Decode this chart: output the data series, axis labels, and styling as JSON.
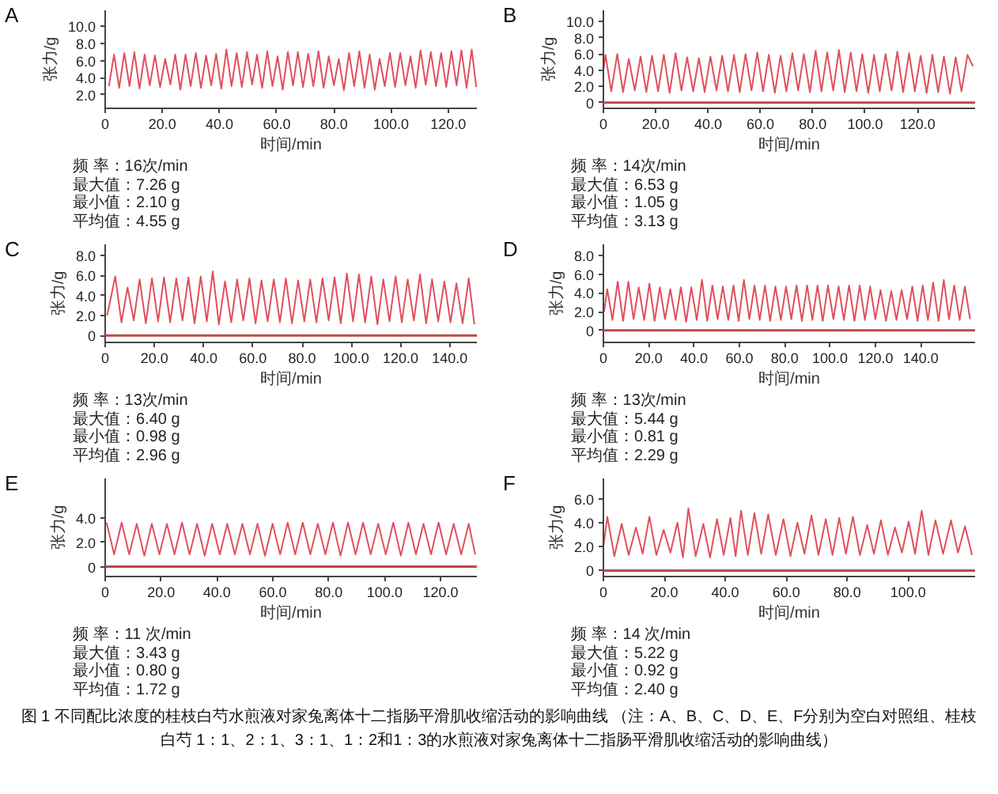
{
  "chart_data": [
    {
      "type": "line",
      "title": "A",
      "xlabel": "时间/min",
      "ylabel": "张力/g",
      "x": [
        1.3,
        3.1,
        4.9,
        6.7,
        8.5,
        10.2,
        12.0,
        13.8,
        15.6,
        17.4,
        19.2,
        21.0,
        22.8,
        24.5,
        26.3,
        28.1,
        29.9,
        31.7,
        33.5,
        35.3,
        37.1,
        38.8,
        40.6,
        42.4,
        44.2,
        46.0,
        47.8,
        49.6,
        51.4,
        53.1,
        54.9,
        56.7,
        58.5,
        60.3,
        62.1,
        63.9,
        65.7,
        67.4,
        69.2,
        71.0,
        72.8,
        74.6,
        76.4,
        78.2,
        80.0,
        81.7,
        83.5,
        85.3,
        87.1,
        88.9,
        90.7,
        92.5,
        94.3,
        96.0,
        97.8,
        99.6,
        101.4,
        103.2,
        105.0,
        106.8,
        108.6,
        110.3,
        112.1,
        113.9,
        115.7,
        117.5,
        119.3,
        121.1,
        122.9,
        124.6,
        126.4,
        128.2,
        129.8
      ],
      "series": [
        {
          "color": "#e0505c",
          "values": [
            3.0,
            6.7,
            2.8,
            6.9,
            3.0,
            7.0,
            2.7,
            6.7,
            3.1,
            6.6,
            2.9,
            6.2,
            3.2,
            6.7,
            2.6,
            6.7,
            3.0,
            6.9,
            2.8,
            6.6,
            3.1,
            6.8,
            2.7,
            7.3,
            3.0,
            6.9,
            2.9,
            7.0,
            3.2,
            6.7,
            2.8,
            7.1,
            3.0,
            6.5,
            2.6,
            7.0,
            3.1,
            7.0,
            2.9,
            6.8,
            3.0,
            7.1,
            2.8,
            6.5,
            3.1,
            6.2,
            2.5,
            6.9,
            3.0,
            7.1,
            2.8,
            6.7,
            2.6,
            6.2,
            3.0,
            6.9,
            2.9,
            6.9,
            3.1,
            6.5,
            2.8,
            7.2,
            3.2,
            7.0,
            3.0,
            6.9,
            2.9,
            7.1,
            3.1,
            7.2,
            2.8,
            7.3,
            2.9
          ]
        }
      ],
      "xlim": [
        0,
        130
      ],
      "ylim": [
        0.4,
        11.9
      ],
      "xticks": [
        0,
        {
          "value": 20,
          "label": "20.0"
        },
        {
          "value": 40,
          "label": "40.0"
        },
        {
          "value": 60,
          "label": "60.0"
        },
        {
          "value": 80,
          "label": "80.0"
        },
        {
          "value": 100,
          "label": "100.0"
        },
        {
          "value": 120,
          "label": "120.0"
        }
      ],
      "yticks": [
        {
          "value": 2,
          "label": "2.0"
        },
        {
          "value": 4,
          "label": "4.0"
        },
        {
          "value": 6,
          "label": "6.0"
        },
        {
          "value": 8,
          "label": "8.0"
        },
        {
          "value": 10,
          "label": "10.0"
        }
      ],
      "annotations": [
        "频 率：16次/min",
        "最大值：7.26 g",
        "最小值：2.10 g",
        "平均值：4.55 g"
      ]
    },
    {
      "type": "line",
      "title": "B",
      "xlabel": "时间/min",
      "ylabel": "张力/g",
      "x": [
        0.0,
        0.8,
        3.0,
        5.3,
        7.5,
        9.7,
        12.0,
        14.2,
        16.4,
        18.6,
        20.9,
        23.1,
        25.3,
        27.6,
        29.8,
        32.0,
        34.3,
        36.5,
        38.7,
        40.9,
        43.2,
        45.4,
        47.6,
        49.9,
        52.1,
        54.3,
        56.6,
        58.8,
        61.0,
        63.2,
        65.5,
        67.7,
        69.9,
        72.2,
        74.4,
        76.6,
        78.9,
        81.1,
        83.3,
        85.5,
        87.8,
        90.0,
        92.2,
        94.5,
        96.7,
        98.9,
        101.2,
        103.4,
        105.6,
        107.8,
        110.1,
        112.3,
        114.5,
        116.8,
        119.0,
        121.2,
        123.5,
        125.7,
        127.9,
        130.1,
        132.4,
        134.6,
        136.8,
        139.1,
        141.2
      ],
      "series": [
        {
          "color": "#e0505c",
          "values": [
            4.0,
            5.9,
            1.4,
            6.0,
            1.3,
            5.4,
            1.5,
            5.7,
            1.3,
            5.8,
            1.4,
            5.9,
            1.2,
            6.1,
            1.5,
            5.6,
            1.4,
            5.5,
            1.3,
            5.7,
            1.5,
            5.8,
            1.4,
            5.9,
            1.3,
            6.0,
            1.5,
            6.2,
            1.4,
            5.9,
            1.2,
            5.8,
            1.4,
            6.1,
            1.5,
            6.0,
            1.3,
            6.4,
            1.4,
            6.2,
            1.5,
            6.5,
            1.3,
            6.2,
            1.4,
            6.0,
            1.2,
            5.9,
            1.4,
            6.0,
            1.5,
            6.3,
            1.3,
            6.1,
            1.4,
            5.8,
            1.2,
            5.9,
            1.3,
            5.7,
            1.1,
            5.6,
            1.4,
            5.9,
            4.5
          ]
        }
      ],
      "xlim": [
        0,
        142
      ],
      "ylim": [
        -0.7,
        11.4
      ],
      "xticks": [
        0,
        {
          "value": 20,
          "label": "20.0"
        },
        {
          "value": 40,
          "label": "40.0"
        },
        {
          "value": 60,
          "label": "60.0"
        },
        {
          "value": 80,
          "label": "80.0"
        },
        {
          "value": 100,
          "label": "100.0"
        },
        {
          "value": 120,
          "label": "120.0"
        }
      ],
      "yticks": [
        0,
        {
          "value": 2,
          "label": "2.0"
        },
        {
          "value": 4,
          "label": "4.0"
        },
        {
          "value": 6,
          "label": "6.0"
        },
        {
          "value": 8,
          "label": "8.0"
        },
        {
          "value": 10,
          "label": "10.0"
        }
      ],
      "ref_lines": [
        {
          "axis": "y",
          "value": 0,
          "color": "#b84a4a"
        }
      ],
      "annotations": [
        "频 率：14次/min",
        "最大值：6.53 g",
        "最小值：1.05 g",
        "平均值：3.13 g"
      ]
    },
    {
      "type": "line",
      "title": "C",
      "xlabel": "时间/min",
      "ylabel": "张力/g",
      "x": [
        0.8,
        4.1,
        6.6,
        9.1,
        11.6,
        14.0,
        16.5,
        19.0,
        21.5,
        23.9,
        26.4,
        28.9,
        31.4,
        33.8,
        36.3,
        38.8,
        41.3,
        43.7,
        46.2,
        48.7,
        51.2,
        53.6,
        56.1,
        58.6,
        61.1,
        63.5,
        66.0,
        68.5,
        71.0,
        73.4,
        75.9,
        78.4,
        80.9,
        83.3,
        85.8,
        88.3,
        90.8,
        93.2,
        95.7,
        98.2,
        100.7,
        103.1,
        105.6,
        108.1,
        110.6,
        113.0,
        115.5,
        118.0,
        120.5,
        122.9,
        125.4,
        127.9,
        130.4,
        132.8,
        135.3,
        137.8,
        140.3,
        142.7,
        145.2,
        147.7,
        150.0
      ],
      "series": [
        {
          "color": "#e0505c",
          "values": [
            2.0,
            5.9,
            1.3,
            4.8,
            1.5,
            5.6,
            1.2,
            5.7,
            1.4,
            5.8,
            1.3,
            5.7,
            1.5,
            5.8,
            1.2,
            5.9,
            1.4,
            6.4,
            1.1,
            5.4,
            1.3,
            5.6,
            1.5,
            5.7,
            1.2,
            5.5,
            1.4,
            5.6,
            1.3,
            5.7,
            1.2,
            5.5,
            1.4,
            5.6,
            1.3,
            5.7,
            1.5,
            5.8,
            1.2,
            6.2,
            1.4,
            6.1,
            1.3,
            5.9,
            1.1,
            5.6,
            1.4,
            5.9,
            1.3,
            5.6,
            1.5,
            6.1,
            1.2,
            5.6,
            1.4,
            5.4,
            1.3,
            5.2,
            1.2,
            5.7,
            1.1
          ]
        }
      ],
      "xlim": [
        0,
        151
      ],
      "ylim": [
        -0.7,
        9.1
      ],
      "xticks": [
        0,
        {
          "value": 20,
          "label": "20.0"
        },
        {
          "value": 40,
          "label": "40.0"
        },
        {
          "value": 60,
          "label": "60.0"
        },
        {
          "value": 80,
          "label": "80.0"
        },
        {
          "value": 100,
          "label": "100.0"
        },
        {
          "value": 120,
          "label": "120.0"
        },
        {
          "value": 140,
          "label": "140.0"
        }
      ],
      "yticks": [
        0,
        {
          "value": 2,
          "label": "2.0"
        },
        {
          "value": 4,
          "label": "4.0"
        },
        {
          "value": 6,
          "label": "6.0"
        },
        {
          "value": 8,
          "label": "8.0"
        }
      ],
      "ref_lines": [
        {
          "axis": "y",
          "value": 0,
          "color": "#b84a4a"
        }
      ],
      "annotations": [
        "频 率：13次/min",
        "最大值：6.40 g",
        "最小值：0.98 g",
        "平均值：2.96 g"
      ]
    },
    {
      "type": "line",
      "title": "D",
      "xlabel": "时间/min",
      "ylabel": "张力/g",
      "x": [
        0.3,
        1.7,
        4.0,
        6.3,
        8.7,
        11.0,
        13.3,
        15.6,
        18.0,
        20.3,
        22.6,
        24.9,
        27.2,
        29.5,
        31.9,
        34.2,
        36.5,
        38.8,
        41.2,
        43.5,
        45.8,
        48.1,
        50.4,
        52.7,
        55.1,
        57.4,
        59.7,
        62.0,
        64.4,
        66.7,
        69.0,
        71.3,
        73.6,
        75.9,
        78.3,
        80.6,
        82.9,
        85.2,
        87.6,
        89.9,
        92.2,
        94.5,
        96.8,
        99.1,
        101.5,
        103.8,
        106.1,
        108.4,
        110.8,
        113.1,
        115.4,
        117.7,
        120.0,
        122.3,
        124.7,
        127.0,
        129.3,
        131.6,
        134.0,
        136.3,
        138.6,
        140.9,
        143.2,
        145.5,
        147.9,
        150.2,
        152.5,
        154.8,
        157.2,
        159.5,
        161.8
      ],
      "series": [
        {
          "color": "#e0505c",
          "values": [
            2.0,
            4.4,
            1.1,
            5.2,
            1.0,
            5.2,
            1.2,
            4.6,
            1.1,
            5.0,
            1.0,
            4.6,
            1.2,
            4.4,
            1.1,
            4.6,
            0.9,
            4.6,
            1.1,
            5.4,
            1.0,
            4.8,
            1.2,
            4.7,
            1.1,
            4.8,
            1.0,
            5.4,
            1.2,
            4.8,
            1.1,
            4.8,
            1.0,
            4.7,
            1.1,
            4.7,
            1.2,
            4.8,
            1.0,
            4.8,
            1.1,
            4.8,
            1.0,
            4.8,
            1.2,
            4.7,
            1.1,
            4.8,
            1.0,
            4.8,
            1.1,
            4.7,
            1.2,
            4.3,
            1.0,
            4.2,
            1.1,
            4.3,
            1.2,
            4.7,
            1.0,
            4.8,
            1.1,
            5.1,
            1.0,
            5.4,
            1.2,
            4.8,
            1.1,
            4.7,
            1.2
          ]
        }
      ],
      "xlim": [
        0,
        164
      ],
      "ylim": [
        -1.3,
        9.2
      ],
      "xticks": [
        0,
        {
          "value": 20,
          "label": "20.0"
        },
        {
          "value": 40,
          "label": "40.0"
        },
        {
          "value": 60,
          "label": "60.0"
        },
        {
          "value": 80,
          "label": "80.0"
        },
        {
          "value": 100,
          "label": "100.0"
        },
        {
          "value": 120,
          "label": "120.0"
        },
        {
          "value": 140,
          "label": "140.0"
        }
      ],
      "yticks": [
        0,
        {
          "value": 2,
          "label": "2.0"
        },
        {
          "value": 4,
          "label": "4.0"
        },
        {
          "value": 6,
          "label": "6.0"
        },
        {
          "value": 8,
          "label": "8.0"
        }
      ],
      "ref_lines": [
        {
          "axis": "y",
          "value": 0,
          "color": "#b84a4a"
        }
      ],
      "annotations": [
        "频 率：13次/min",
        "最大值：5.44 g",
        "最小值：0.81 g",
        "平均值：2.29 g"
      ]
    },
    {
      "type": "line",
      "title": "E",
      "xlabel": "时间/min",
      "ylabel": "张力/g",
      "x": [
        0.5,
        3.2,
        5.9,
        8.6,
        11.3,
        14.0,
        16.7,
        19.4,
        22.1,
        24.8,
        27.5,
        30.2,
        32.9,
        35.6,
        38.3,
        41.0,
        43.7,
        46.4,
        49.1,
        51.8,
        54.5,
        57.2,
        59.9,
        62.6,
        65.3,
        68.0,
        70.7,
        73.4,
        76.1,
        78.8,
        81.5,
        84.2,
        86.9,
        89.6,
        92.3,
        95.0,
        97.7,
        100.4,
        103.1,
        105.8,
        108.5,
        111.2,
        113.9,
        116.6,
        119.3,
        122.0,
        124.7,
        127.4,
        130.1,
        132.4
      ],
      "series": [
        {
          "color": "#e0505c",
          "values": [
            3.6,
            1.0,
            3.6,
            1.0,
            3.5,
            0.9,
            3.5,
            1.0,
            3.5,
            1.0,
            3.6,
            1.0,
            3.5,
            0.9,
            3.5,
            1.0,
            3.5,
            1.0,
            3.5,
            1.0,
            3.5,
            0.9,
            3.5,
            1.0,
            3.6,
            1.0,
            3.6,
            1.0,
            3.5,
            1.0,
            3.6,
            0.9,
            3.6,
            1.0,
            3.6,
            1.0,
            3.5,
            1.0,
            3.6,
            0.9,
            3.6,
            1.0,
            3.5,
            1.0,
            3.6,
            1.0,
            3.5,
            1.0,
            3.5,
            1.0
          ]
        }
      ],
      "xlim": [
        0,
        133
      ],
      "ylim": [
        -0.8,
        7.2
      ],
      "xticks": [
        0,
        {
          "value": 20,
          "label": "20.0"
        },
        {
          "value": 40,
          "label": "40.0"
        },
        {
          "value": 60,
          "label": "60.0"
        },
        {
          "value": 80,
          "label": "80.0"
        },
        {
          "value": 100,
          "label": "100.0"
        },
        {
          "value": 120,
          "label": "120.0"
        }
      ],
      "yticks": [
        0,
        {
          "value": 2,
          "label": "2.0"
        },
        {
          "value": 4,
          "label": "4.0"
        }
      ],
      "ref_lines": [
        {
          "axis": "y",
          "value": 0,
          "color": "#b84a4a"
        }
      ],
      "annotations": [
        "频 率：11 次/min",
        "最大值：3.43 g",
        "最小值：0.80 g",
        "平均值：1.72 g"
      ]
    },
    {
      "type": "line",
      "title": "F",
      "xlabel": "时间/min",
      "ylabel": "张力/g",
      "x": [
        0.0,
        1.3,
        3.6,
        6.0,
        8.3,
        10.7,
        12.9,
        15.1,
        17.4,
        19.8,
        22.0,
        24.3,
        26.1,
        27.9,
        30.3,
        32.8,
        35.0,
        37.3,
        39.5,
        41.7,
        43.4,
        45.2,
        47.4,
        49.6,
        51.8,
        54.1,
        56.6,
        59.1,
        61.4,
        63.7,
        66.0,
        68.3,
        70.6,
        73.0,
        75.2,
        77.4,
        79.6,
        81.9,
        84.2,
        86.6,
        88.8,
        91.1,
        93.4,
        95.7,
        98.0,
        100.2,
        102.3,
        104.5,
        106.7,
        109.0,
        111.5,
        114.1,
        116.4,
        118.7,
        121.0
      ],
      "series": [
        {
          "color": "#e0505c",
          "values": [
            2.0,
            4.5,
            1.2,
            3.9,
            1.3,
            3.6,
            1.4,
            4.5,
            1.3,
            3.4,
            1.5,
            4.0,
            1.1,
            5.2,
            1.2,
            3.9,
            1.1,
            4.3,
            1.3,
            4.4,
            1.2,
            5.0,
            1.3,
            4.8,
            1.4,
            4.7,
            1.3,
            4.3,
            1.2,
            4.0,
            1.4,
            4.6,
            1.3,
            4.3,
            1.3,
            4.4,
            1.4,
            4.5,
            1.3,
            3.8,
            1.4,
            4.2,
            1.3,
            3.6,
            1.5,
            4.1,
            1.4,
            5.0,
            1.3,
            4.2,
            1.4,
            4.2,
            1.5,
            3.7,
            1.3
          ]
        }
      ],
      "xlim": [
        0,
        122
      ],
      "ylim": [
        -0.5,
        7.7
      ],
      "xticks": [
        0,
        {
          "value": 20,
          "label": "20.0"
        },
        {
          "value": 40,
          "label": "40.0"
        },
        {
          "value": 60,
          "label": "60.0"
        },
        {
          "value": 80,
          "label": "80.0"
        },
        {
          "value": 100,
          "label": "100.0"
        }
      ],
      "yticks": [
        0,
        {
          "value": 2,
          "label": "2.0"
        },
        {
          "value": 4,
          "label": "4.0"
        },
        {
          "value": 6,
          "label": "6.0"
        }
      ],
      "ref_lines": [
        {
          "axis": "y",
          "value": 0,
          "color": "#b84a4a"
        }
      ],
      "annotations": [
        "频 率：14 次/min",
        "最大值：5.22 g",
        "最小值：0.92 g",
        "平均值：2.40 g"
      ]
    },
    {
      "type": "other",
      "annotations": [
        "图 1 不同配比浓度的桂枝白芍水煎液对家兔离体十二指肠平滑肌收缩活动的影响曲线 （注：A、B、C、D、E、F分别为空白对照组、桂枝白芍 1：1、2：1、3：1、1：2和1：3的水煎液对家兔离体十二指肠平滑肌收缩活动的影响曲线）"
      ]
    }
  ]
}
